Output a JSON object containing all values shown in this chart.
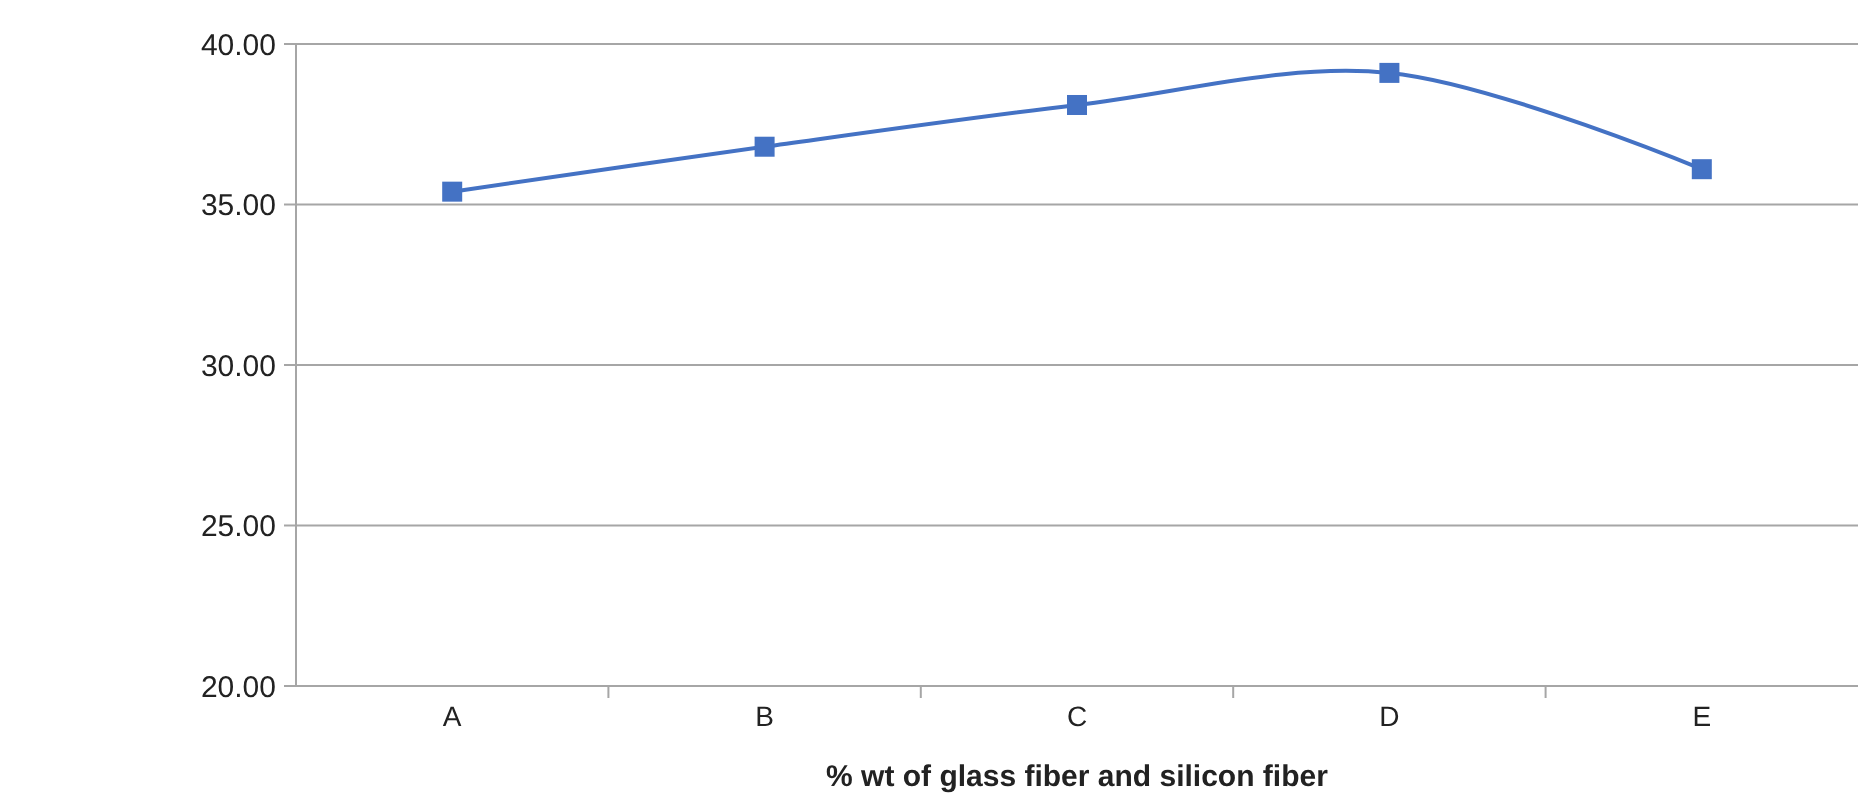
{
  "chart_data": {
    "type": "line",
    "xlabel": "%  wt of glass fiber and silicon fiber",
    "categories": [
      "A",
      "B",
      "C",
      "D",
      "E"
    ],
    "series": [
      {
        "color": "#4472c4",
        "values": [
          35.4,
          36.8,
          38.1,
          39.1,
          36.1
        ]
      }
    ],
    "ylim": [
      20,
      40
    ],
    "yticks": [
      {
        "value": 20,
        "label": "20.00"
      },
      {
        "value": 25,
        "label": "25.00"
      },
      {
        "value": 30,
        "label": "30.00"
      },
      {
        "value": 35,
        "label": "35.00"
      },
      {
        "value": 40,
        "label": "40.00"
      }
    ],
    "grid": "y",
    "marker": "square",
    "line_style": "solid"
  }
}
